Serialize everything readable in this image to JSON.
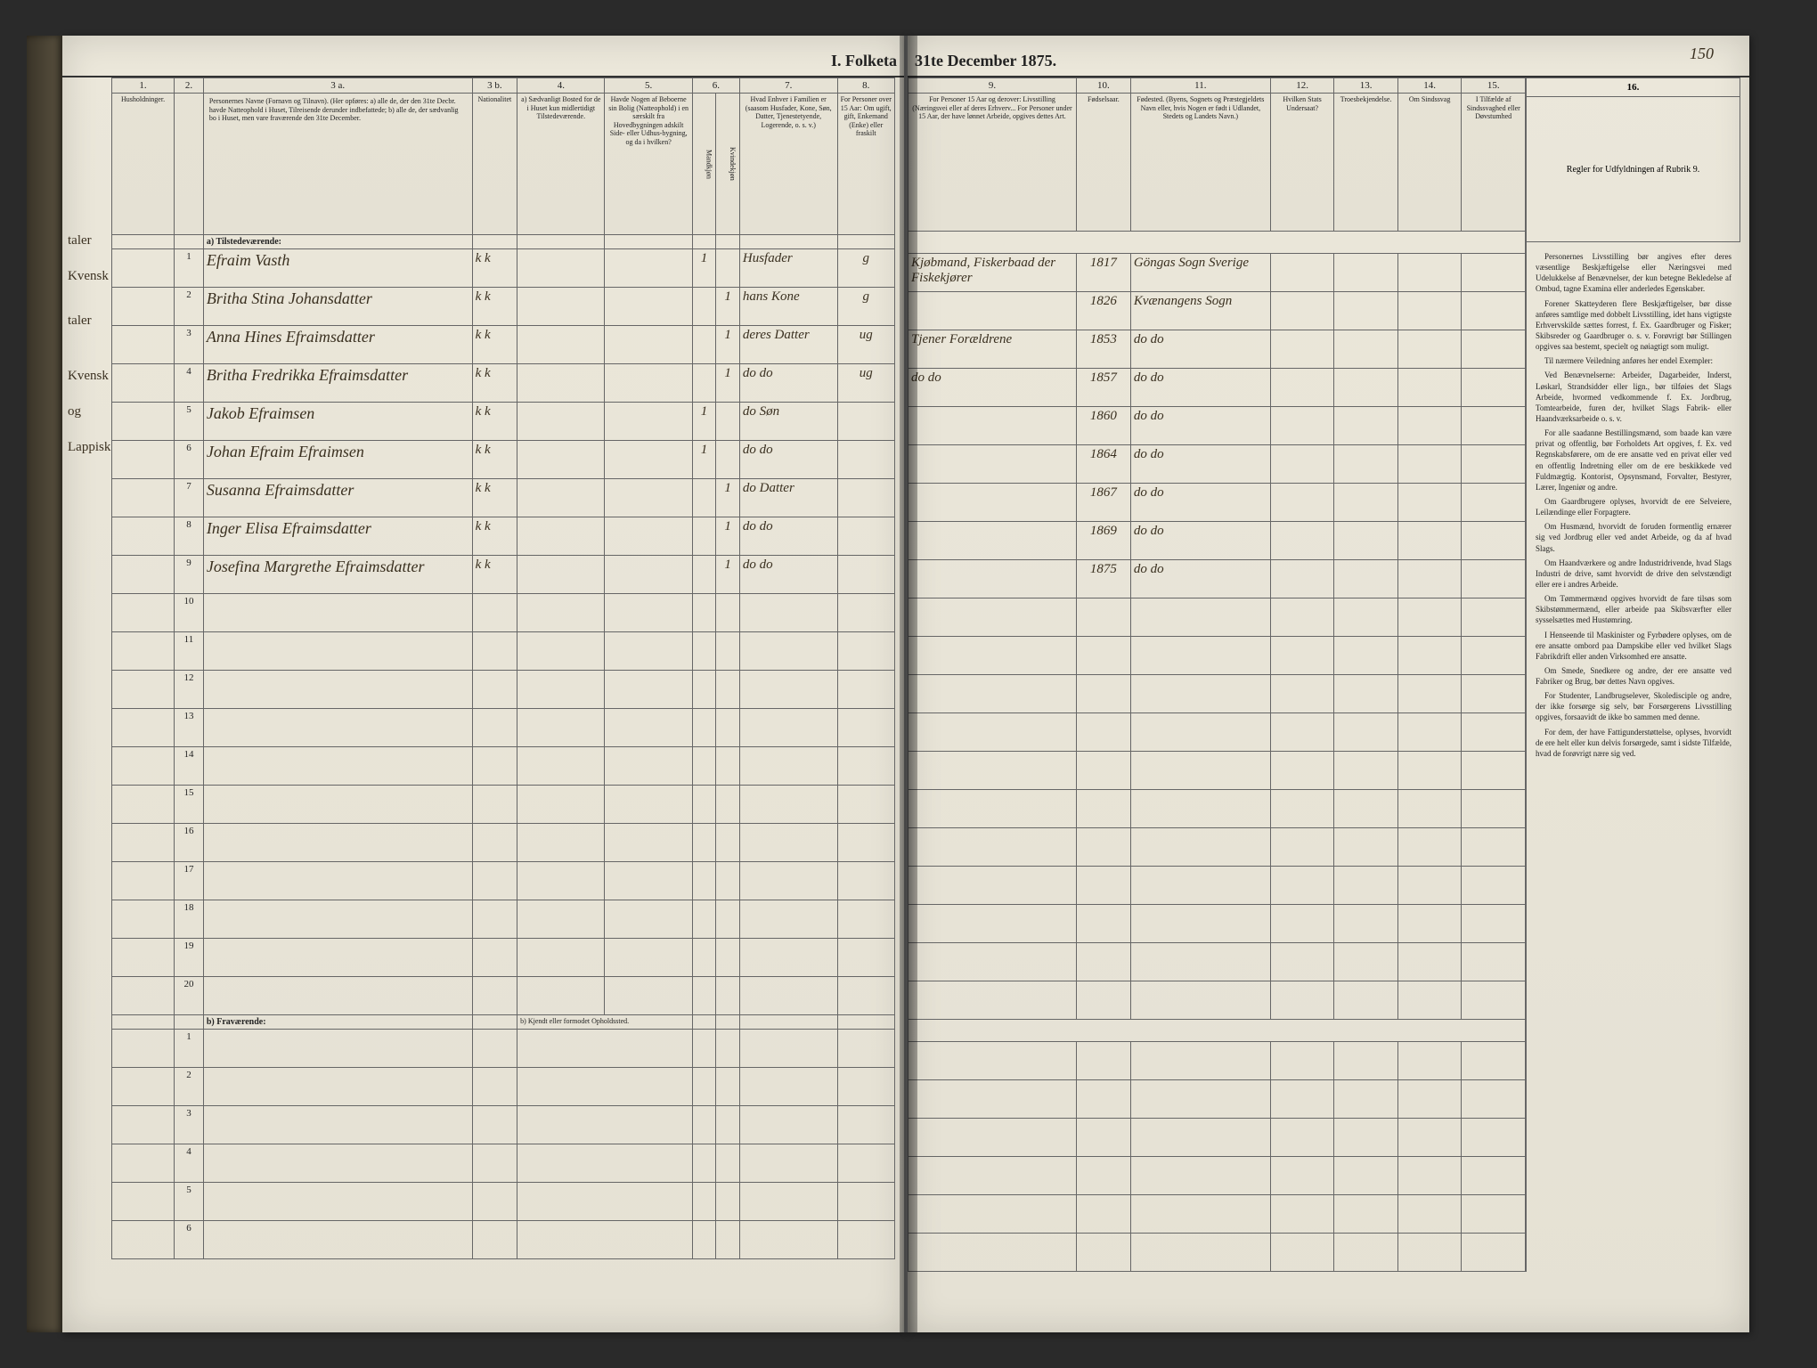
{
  "header": {
    "title_left": "I. Folketa",
    "title_right": "31te December 1875.",
    "page_number": "150"
  },
  "columns_left": {
    "c1": {
      "num": "1.",
      "label": "Husholdninger."
    },
    "c2": {
      "num": "2.",
      "label": ""
    },
    "c3a": {
      "num": "3 a.",
      "label": "Personernes Navne (Fornavn og Tilnavn).\n(Her opføres:\na) alle de, der den 31te Decbr. havde Natteophold i Huset, Tilreisende derunder indbefattede;\nb) alle de, der sædvanlig bo i Huset, men vare fraværende den 31te December."
    },
    "c3b": {
      "num": "3 b.",
      "label": "Nationalitet"
    },
    "c4": {
      "num": "4.",
      "label": "a) Sædvanligt Bosted for de i Huset kun midlertidigt Tilstedeværende."
    },
    "c5": {
      "num": "5.",
      "label": "Havde Nogen af Beboerne sin Bolig (Natteophold) i en særskilt fra Hovedbygningen adskilt Side- eller Udhus-bygning, og da i hvilken?"
    },
    "c6": {
      "num": "6.",
      "label": "Kjøn."
    },
    "c6m": {
      "label": "Mandkjøn"
    },
    "c6k": {
      "label": "Kvindekjøn"
    },
    "c7": {
      "num": "7.",
      "label": "Hvad Enhver i Familien er (saasom Husfader, Kone, Søn, Datter, Tjenestetyende, Logerende, o. s. v.)"
    },
    "c8": {
      "num": "8.",
      "label": "For Personer over 15 Aar: Om ugift, gift, Enkemand (Enke) eller fraskilt"
    }
  },
  "columns_right": {
    "c9": {
      "num": "9.",
      "label": "For Personer 15 Aar og derover: Livsstilling (Næringsvei eller af deres Erhverv... For Personer under 15 Aar, der have lønnet Arbeide, opgives dettes Art."
    },
    "c10": {
      "num": "10.",
      "label": "Fødselsaar."
    },
    "c11": {
      "num": "11.",
      "label": "Fødested. (Byens, Sognets og Præstegjeldets Navn eller, hvis Nogen er født i Udlandet, Stedets og Landets Navn.)"
    },
    "c12": {
      "num": "12.",
      "label": "Hvilken Stats Undersaat?"
    },
    "c13": {
      "num": "13.",
      "label": "Troesbekjendelse."
    },
    "c14": {
      "num": "14.",
      "label": "Om Sindssvag"
    },
    "c15": {
      "num": "15.",
      "label": "I Tilfælde af Sindssvaghed eller Døvstumhed"
    },
    "c16": {
      "num": "16.",
      "label": "Regler for Udfyldningen af Rubrik 9."
    }
  },
  "section_a": "a) Tilstedeværende:",
  "section_b": "b) Fraværende:",
  "section_b_right": "b) Kjendt eller formodet Opholdssted.",
  "margin_notes": [
    "taler",
    "Kvensk",
    "taler",
    "Kvensk",
    "og",
    "Lappisk"
  ],
  "rows": [
    {
      "n": "1",
      "name": "Efraim Vasth",
      "nat": "k k",
      "m": "1",
      "k": "",
      "rel": "Husfader",
      "civ": "g",
      "occ": "Kjøbmand, Fiskerbaad der Fiskekjører",
      "year": "1817",
      "place": "Göngas Sogn Sverige"
    },
    {
      "n": "2",
      "name": "Britha Stina Johansdatter",
      "nat": "k k",
      "m": "",
      "k": "1",
      "rel": "hans Kone",
      "civ": "g",
      "occ": "",
      "year": "1826",
      "place": "Kvænangens Sogn"
    },
    {
      "n": "3",
      "name": "Anna Hines Efraimsdatter",
      "nat": "k k",
      "m": "",
      "k": "1",
      "rel": "deres Datter",
      "civ": "ug",
      "occ": "Tjener Forældrene",
      "year": "1853",
      "place": "do do"
    },
    {
      "n": "4",
      "name": "Britha Fredrikka Efraimsdatter",
      "nat": "k k",
      "m": "",
      "k": "1",
      "rel": "do do",
      "civ": "ug",
      "occ": "do do",
      "year": "1857",
      "place": "do do"
    },
    {
      "n": "5",
      "name": "Jakob Efraimsen",
      "nat": "k k",
      "m": "1",
      "k": "",
      "rel": "do Søn",
      "civ": "",
      "occ": "",
      "year": "1860",
      "place": "do do"
    },
    {
      "n": "6",
      "name": "Johan Efraim Efraimsen",
      "nat": "k k",
      "m": "1",
      "k": "",
      "rel": "do do",
      "civ": "",
      "occ": "",
      "year": "1864",
      "place": "do do"
    },
    {
      "n": "7",
      "name": "Susanna Efraimsdatter",
      "nat": "k k",
      "m": "",
      "k": "1",
      "rel": "do Datter",
      "civ": "",
      "occ": "",
      "year": "1867",
      "place": "do do"
    },
    {
      "n": "8",
      "name": "Inger Elisa Efraimsdatter",
      "nat": "k k",
      "m": "",
      "k": "1",
      "rel": "do do",
      "civ": "",
      "occ": "",
      "year": "1869",
      "place": "do do"
    },
    {
      "n": "9",
      "name": "Josefina Margrethe Efraimsdatter",
      "nat": "k k",
      "m": "",
      "k": "1",
      "rel": "do do",
      "civ": "",
      "occ": "",
      "year": "1875",
      "place": "do do"
    }
  ],
  "empty_rows_a": [
    "10",
    "11",
    "12",
    "13",
    "14",
    "15",
    "16",
    "17",
    "18",
    "19",
    "20"
  ],
  "empty_rows_b": [
    "1",
    "2",
    "3",
    "4",
    "5",
    "6"
  ],
  "instructions": {
    "p1": "Personernes Livsstilling bør angives efter deres væsentlige Beskjæftigelse eller Næringsvei med Udelukkelse af Benævnelser, der kun betegne Bekledelse af Ombud, tagne Examina eller anderledes Egenskaber.",
    "p2": "Forener Skatteyderen flere Beskjæftigelser, bør disse anføres samtlige med dobbelt Livsstilling, idet hans vigtigste Erhvervskilde sættes forrest, f. Ex. Gaardbruger og Fisker; Skibsreder og Gaardbruger o. s. v. Forøvrigt bør Stillingen opgives saa bestemt, specielt og nøiagtigt som muligt.",
    "p3": "Til nærmere Veiledning anføres her endel Exempler:",
    "p4": "Ved Benævnelserne: Arbeider, Dagarbeider, Inderst, Løskarl, Strandsidder eller lign., bør tilføies det Slags Arbeide, hvormed vedkommende f. Ex. Jordbrug, Tomtearbeide, furen der, hvilket Slags Fabrik- eller Haandværksarbeide o. s. v.",
    "p5": "For alle saadanne Bestillingsmænd, som baade kan være privat og offentlig, bør Forholdets Art opgives, f. Ex. ved Regnskabsførere, om de ere ansatte ved en privat eller ved en offentlig Indretning eller om de ere beskikkede ved Fuldmægtig. Kontorist, Opsynsmand, Forvalter, Bestyrer, Lærer, Ingeniør og andre.",
    "p6": "Om Gaardbrugere oplyses, hvorvidt de ere Selveiere, Leilændinge eller Forpagtere.",
    "p7": "Om Husmænd, hvorvidt de foruden formentlig ernærer sig ved Jordbrug eller ved andet Arbeide, og da af hvad Slags.",
    "p8": "Om Haandværkere og andre Industridrivende, hvad Slags Industri de drive, samt hvorvidt de drive den selvstændigt eller ere i andres Arbeide.",
    "p9": "Om Tømmermænd opgives hvorvidt de fare tilsøs som Skibstømmermænd, eller arbeide paa Skibsværfter eller sysselsættes med Hustømring.",
    "p10": "I Henseende til Maskinister og Fyrbødere oplyses, om de ere ansatte ombord paa Dampskibe eller ved hvilket Slags Fabrikdrift eller anden Virksomhed ere ansatte.",
    "p11": "Om Smede, Snedkere og andre, der ere ansatte ved Fabriker og Brug, bør dettes Navn opgives.",
    "p12": "For Studenter, Landbrugselever, Skoledisciple og andre, der ikke forsørge sig selv, bør Forsørgerens Livsstilling opgives, forsaavidt de ikke bo sammen med denne.",
    "p13": "For dem, der have Fattigunderstøttelse, oplyses, hvorvidt de ere helt eller kun delvis forsørgede, samt i sidste Tilfælde, hvad de forøvrigt nære sig ved."
  }
}
